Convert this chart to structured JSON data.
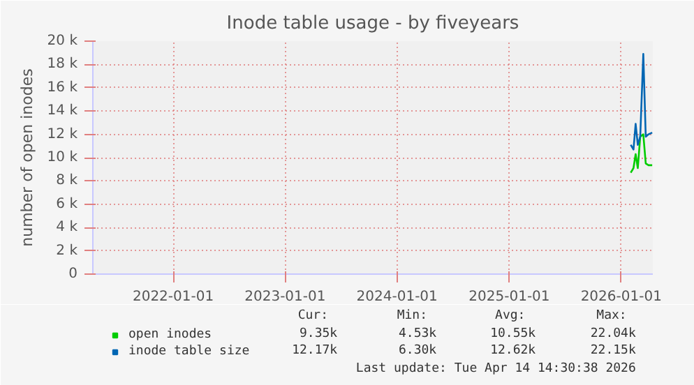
{
  "chart_data": {
    "type": "line",
    "title": "Inode table usage - by fiveyears",
    "ylabel": "number of open inodes",
    "x": [
      "2026-02-01",
      "2026-02-10",
      "2026-02-17",
      "2026-02-24",
      "2026-03-04",
      "2026-03-14",
      "2026-03-22",
      "2026-03-31",
      "2026-04-12"
    ],
    "series": [
      {
        "name": "open inodes",
        "color": "#00cc00",
        "values": [
          8700,
          9100,
          10300,
          9100,
          11800,
          12000,
          9500,
          9350,
          9350
        ]
      },
      {
        "name": "inode table size",
        "color": "#0066b3",
        "values": [
          11100,
          10700,
          12900,
          11100,
          11800,
          18900,
          11800,
          12000,
          12150
        ]
      }
    ],
    "xlim": [
      "2021-04-14",
      "2026-04-14"
    ],
    "xticks": [
      "2022-01-01",
      "2023-01-01",
      "2024-01-01",
      "2025-01-01",
      "2026-01-01"
    ],
    "ylim": [
      0,
      20000
    ],
    "yticks": [
      0,
      {
        "value": 2000,
        "label": "2 k"
      },
      {
        "value": 4000,
        "label": "4 k"
      },
      {
        "value": 6000,
        "label": "6 k"
      },
      {
        "value": 8000,
        "label": "8 k"
      },
      {
        "value": 10000,
        "label": "10 k"
      },
      {
        "value": 12000,
        "label": "12 k"
      },
      {
        "value": 14000,
        "label": "14 k"
      },
      {
        "value": 16000,
        "label": "16 k"
      },
      {
        "value": 18000,
        "label": "18 k"
      },
      {
        "value": 20000,
        "label": "20 k"
      }
    ],
    "grid": true,
    "legend": "bottom left",
    "line_style": "solid",
    "marker": "none",
    "annotations": [
      "Cur:",
      "Min:",
      "Avg:",
      "Max:",
      "9.35k",
      "4.53k",
      "10.55k",
      "22.04k",
      "12.17k",
      "6.30k",
      "12.62k",
      "22.15k",
      "Last update: Tue Apr 14 14:30:38 2026"
    ]
  }
}
